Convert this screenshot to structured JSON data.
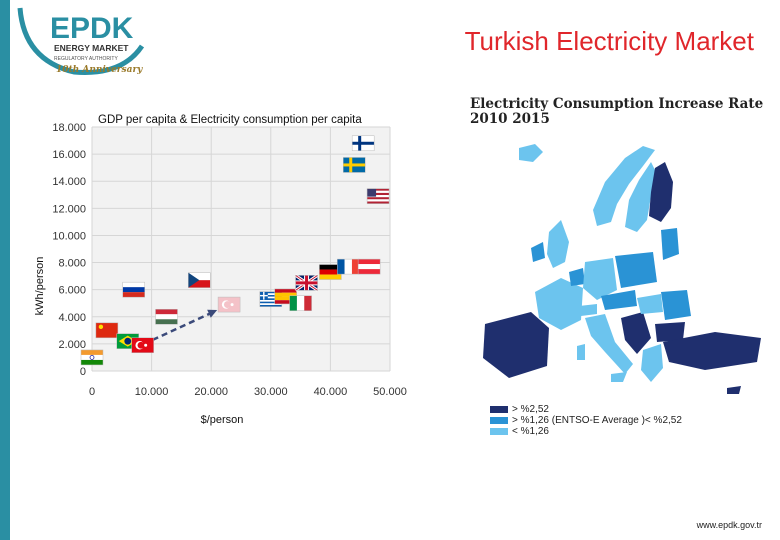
{
  "header": {
    "title": "Turkish Electricity Market",
    "logo": {
      "mark": "EPDK",
      "line1": "ENERGY MARKET",
      "line2": "REGULATORY AUTHORITY",
      "line3": "10th Anniversary"
    }
  },
  "chart_data": [
    {
      "type": "scatter",
      "title": "GDP per capita & Electricity consumption per capita",
      "xlabel": "$/person",
      "ylabel": "kWh/person",
      "xlim": [
        0,
        50000
      ],
      "ylim": [
        0,
        18000
      ],
      "x_ticks": [
        "0",
        "10.000",
        "20.000",
        "30.000",
        "40.000",
        "50.000"
      ],
      "y_ticks": [
        "0",
        "2.000",
        "4.000",
        "6.000",
        "8.000",
        "10.000",
        "12.000",
        "14.000",
        "16.000",
        "18.000"
      ],
      "grid": true,
      "points": [
        {
          "country": "India",
          "flag": "in",
          "x": 0,
          "y": 1000
        },
        {
          "country": "China",
          "flag": "cn",
          "x": 2500,
          "y": 3000
        },
        {
          "country": "Brazil",
          "flag": "br",
          "x": 6000,
          "y": 2200
        },
        {
          "country": "Turkey",
          "flag": "tr",
          "x": 8500,
          "y": 1900
        },
        {
          "country": "Russia",
          "flag": "ru",
          "x": 7000,
          "y": 6000
        },
        {
          "country": "Hungary",
          "flag": "hu",
          "x": 12500,
          "y": 4000
        },
        {
          "country": "Czech Republic",
          "flag": "cz",
          "x": 18000,
          "y": 6700
        },
        {
          "country": "Cyprus",
          "flag": "cy",
          "x": 23000,
          "y": 4900
        },
        {
          "country": "Greece",
          "flag": "gr",
          "x": 30000,
          "y": 5300
        },
        {
          "country": "Spain",
          "flag": "es",
          "x": 32500,
          "y": 5500
        },
        {
          "country": "Italy",
          "flag": "it",
          "x": 35000,
          "y": 5000
        },
        {
          "country": "United Kingdom",
          "flag": "gb",
          "x": 36000,
          "y": 6500
        },
        {
          "country": "Germany",
          "flag": "de",
          "x": 40000,
          "y": 7300
        },
        {
          "country": "France",
          "flag": "fr",
          "x": 43000,
          "y": 7700
        },
        {
          "country": "Austria",
          "flag": "at",
          "x": 46500,
          "y": 7700
        },
        {
          "country": "Sweden",
          "flag": "se",
          "x": 44000,
          "y": 15200
        },
        {
          "country": "Finland",
          "flag": "fi",
          "x": 45500,
          "y": 16800
        },
        {
          "country": "United States",
          "flag": "us",
          "x": 48000,
          "y": 12900
        }
      ],
      "trend_arrow": {
        "from": [
          8500,
          2000
        ],
        "to": [
          21000,
          4500
        ]
      }
    },
    {
      "type": "map",
      "title_line1": "Electricity Consumption Increase Rate",
      "title_line2": "2010 2015",
      "legend": [
        {
          "label": "> %2,52",
          "color": "#1f2f6e"
        },
        {
          "label": "> %1,26 (ENTSO-E Average )< %2,52",
          "color": "#2a93d5"
        },
        {
          "label": "< %1,26",
          "color": "#6cc4ee"
        }
      ]
    }
  ],
  "footer": {
    "url": "www.epdk.gov.tr"
  }
}
